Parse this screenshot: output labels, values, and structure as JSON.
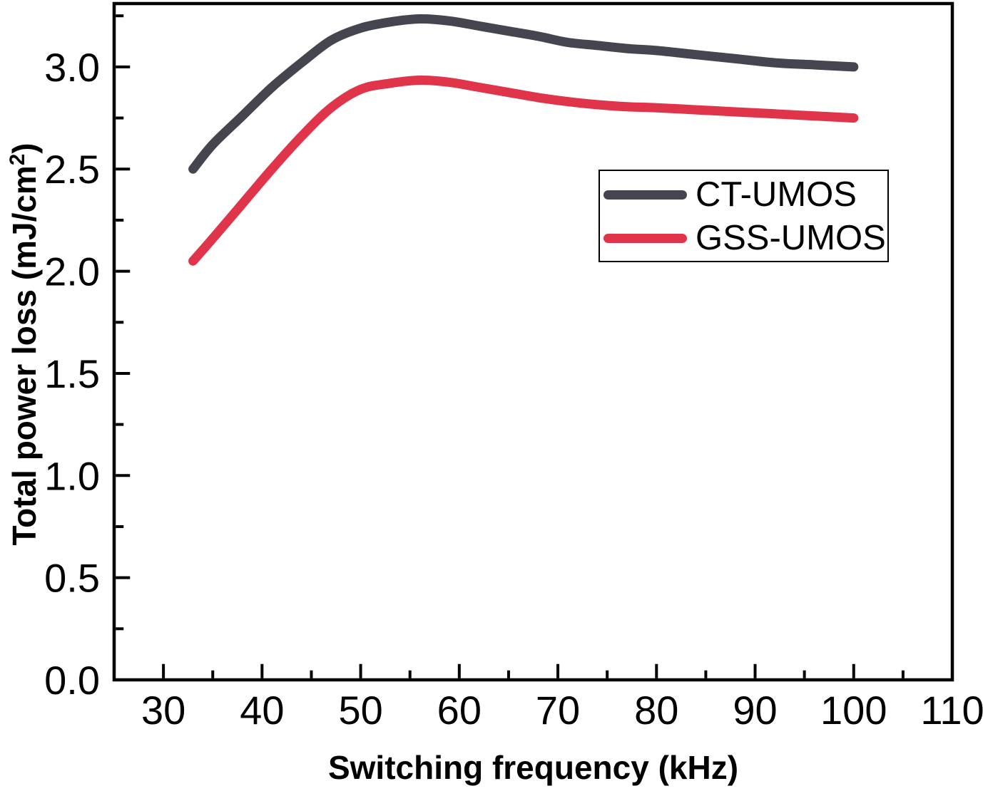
{
  "chart_data": {
    "type": "line",
    "xlabel": "Switching frequency (kHz)",
    "ylabel": "Total power loss (mJ/cm²)",
    "ylabel_parts": {
      "main": "Total power loss (mJ/cm",
      "sup": "2",
      "close": ")"
    },
    "xlim": [
      25,
      110
    ],
    "ylim": [
      0,
      3.31
    ],
    "grid": false,
    "legend_position": "upper-right-inside",
    "x_major_ticks": [
      30,
      40,
      50,
      60,
      70,
      80,
      90,
      100,
      110
    ],
    "x_tick_labels": [
      "30",
      "40",
      "50",
      "60",
      "70",
      "80",
      "90",
      "100",
      "110"
    ],
    "x_minor_ticks": [
      35,
      45,
      55,
      65,
      75,
      85,
      95,
      105
    ],
    "y_major_ticks": [
      0.0,
      0.5,
      1.0,
      1.5,
      2.0,
      2.5,
      3.0
    ],
    "y_tick_labels": [
      "0.0",
      "0.5",
      "1.0",
      "1.5",
      "2.0",
      "2.5",
      "3.0"
    ],
    "y_minor_ticks": [
      0.25,
      0.75,
      1.25,
      1.75,
      2.25,
      2.75,
      3.25
    ],
    "axis_color": "#000000",
    "series": [
      {
        "name": "CT-UMOS",
        "color": "#45454F",
        "x": [
          33,
          35,
          38,
          41,
          44,
          47,
          50,
          53,
          56,
          59,
          62,
          65,
          68,
          71,
          74,
          77,
          80,
          84,
          88,
          92,
          96,
          100
        ],
        "y": [
          2.5,
          2.62,
          2.76,
          2.9,
          3.02,
          3.13,
          3.19,
          3.22,
          3.235,
          3.225,
          3.2,
          3.175,
          3.15,
          3.12,
          3.105,
          3.09,
          3.08,
          3.06,
          3.04,
          3.02,
          3.01,
          3.0
        ]
      },
      {
        "name": "GSS-UMOS",
        "color": "#E0344A",
        "x": [
          33,
          35,
          38,
          41,
          44,
          47,
          50,
          53,
          56,
          59,
          62,
          65,
          68,
          71,
          74,
          77,
          80,
          84,
          88,
          92,
          96,
          100
        ],
        "y": [
          2.05,
          2.16,
          2.33,
          2.5,
          2.66,
          2.8,
          2.89,
          2.92,
          2.935,
          2.925,
          2.9,
          2.875,
          2.85,
          2.83,
          2.815,
          2.805,
          2.8,
          2.79,
          2.78,
          2.77,
          2.76,
          2.75
        ]
      }
    ]
  }
}
